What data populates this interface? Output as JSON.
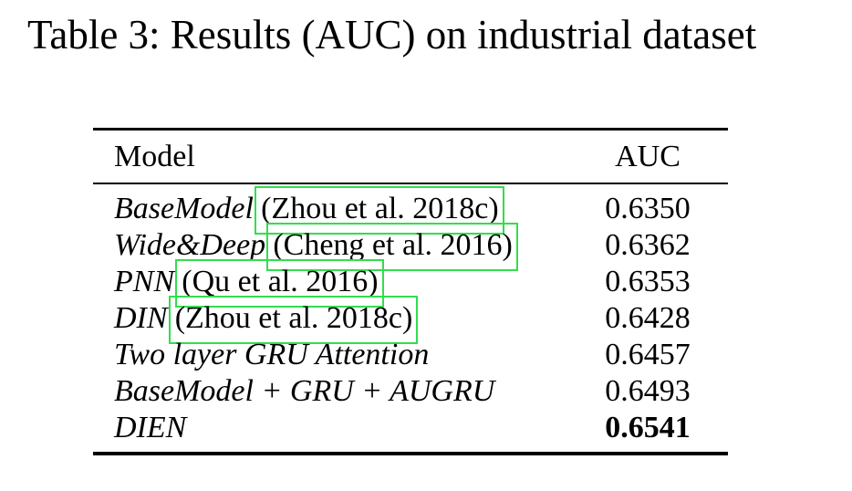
{
  "page": {
    "background_color": "#ffffff",
    "text_color": "#000000"
  },
  "caption": "Table 3: Results (AUC) on industrial dataset",
  "annotation": {
    "link_box_color": "#32dd4e",
    "link_box_meaning": "citation-hyperlink-border"
  },
  "table": {
    "columns": {
      "model": "Model",
      "auc": "AUC"
    },
    "rows": [
      {
        "model": "BaseModel",
        "citation": "(Zhou et al. 2018c)",
        "auc": "0.6350"
      },
      {
        "model": "Wide&Deep",
        "citation": "(Cheng et al. 2016)",
        "auc": "0.6362"
      },
      {
        "model": "PNN",
        "citation": "(Qu et al. 2016)",
        "auc": "0.6353"
      },
      {
        "model": "DIN",
        "citation": "(Zhou et al. 2018c)",
        "auc": "0.6428"
      },
      {
        "model": "Two layer GRU Attention",
        "citation": "",
        "auc": "0.6457"
      },
      {
        "model": "BaseModel + GRU + AUGRU",
        "citation": "",
        "auc": "0.6493"
      },
      {
        "model": "DIEN",
        "citation": "",
        "auc": "0.6541"
      }
    ]
  },
  "chart_data": {
    "type": "table",
    "title": "Table 3: Results (AUC) on industrial dataset",
    "categories": [
      "BaseModel (Zhou et al. 2018c)",
      "Wide&Deep (Cheng et al. 2016)",
      "PNN (Qu et al. 2016)",
      "DIN (Zhou et al. 2018c)",
      "Two layer GRU Attention",
      "BaseModel + GRU + AUGRU",
      "DIEN"
    ],
    "values": [
      0.635,
      0.6362,
      0.6353,
      0.6428,
      0.6457,
      0.6493,
      0.6541
    ],
    "ylabel": "AUC",
    "best_value": 0.6541
  }
}
